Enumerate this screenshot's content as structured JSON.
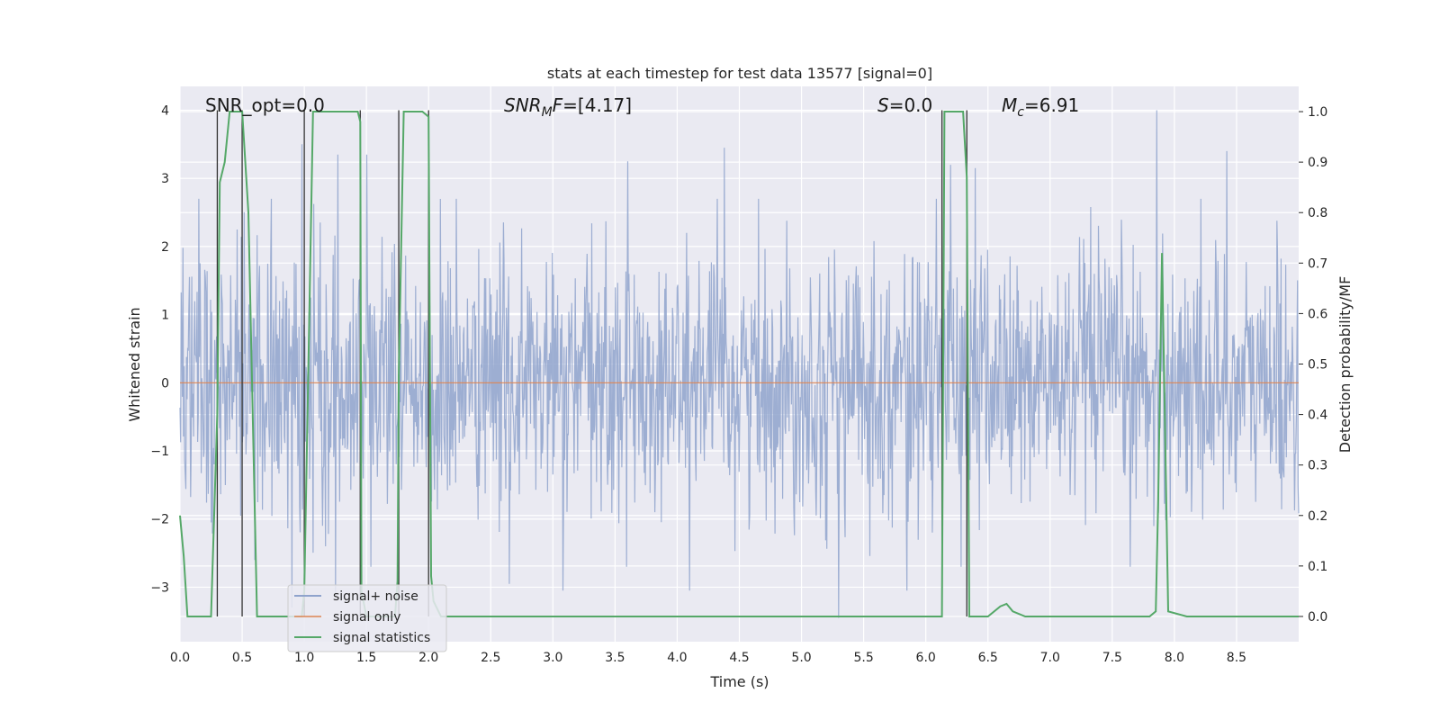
{
  "chart_data": {
    "type": "line",
    "title": "stats at each timestep for test data 13577 [signal=0]",
    "xlabel": "Time (s)",
    "ylabel": "Whitened strain",
    "y2label": "Detection probability/MF",
    "xlim": [
      0,
      9.0
    ],
    "ylim": [
      -3.8,
      4.35
    ],
    "y2lim": [
      -0.05,
      1.05
    ],
    "xticks": [
      0.0,
      0.5,
      1.0,
      1.5,
      2.0,
      2.5,
      3.0,
      3.5,
      4.0,
      4.5,
      5.0,
      5.5,
      6.0,
      6.5,
      7.0,
      7.5,
      8.0,
      8.5
    ],
    "xtick_labels": [
      "0.0",
      "0.5",
      "1.0",
      "1.5",
      "2.0",
      "2.5",
      "3.0",
      "3.5",
      "4.0",
      "4.5",
      "5.0",
      "5.5",
      "6.0",
      "6.5",
      "7.0",
      "7.5",
      "8.0",
      "8.5"
    ],
    "yticks": [
      -3,
      -2,
      -1,
      0,
      1,
      2,
      3,
      4
    ],
    "ytick_labels": [
      "−3",
      "−2",
      "−1",
      "0",
      "1",
      "2",
      "3",
      "4"
    ],
    "y2ticks": [
      0.0,
      0.1,
      0.2,
      0.3,
      0.4,
      0.5,
      0.6,
      0.7,
      0.8,
      0.9,
      1.0
    ],
    "y2tick_labels": [
      "0.0",
      "0.1",
      "0.2",
      "0.3",
      "0.4",
      "0.5",
      "0.6",
      "0.7",
      "0.8",
      "0.9",
      "1.0"
    ],
    "grid": true,
    "legend": {
      "placement": "lower-left",
      "entries": [
        {
          "label": "signal+ noise",
          "color": "#8fa3cc"
        },
        {
          "label": "signal only",
          "color": "#dd8452"
        },
        {
          "label": "signal statistics",
          "color": "#55a868"
        }
      ]
    },
    "annotations": {
      "snr_opt": "SNR_opt=0.0",
      "snr_mf_main": "SNR",
      "snr_mf_sub": "M",
      "snr_mf_f": "F",
      "snr_mf_val": "=[4.17]",
      "s_main": "S",
      "s_val": "=0.0",
      "mc_main": "M",
      "mc_sub": "c",
      "mc_val": "=6.91"
    },
    "series": [
      {
        "name": "signal+ noise",
        "color": "#8fa3cc",
        "description": "whitened noise, sigma ~1",
        "extremes": [
          [
            0.98,
            3.5
          ],
          [
            1.27,
            3.35
          ],
          [
            1.5,
            3.35
          ],
          [
            3.6,
            3.25
          ],
          [
            4.38,
            3.45
          ],
          [
            6.2,
            3.2
          ],
          [
            6.4,
            3.15
          ],
          [
            7.86,
            4.0
          ],
          [
            8.42,
            3.4
          ],
          [
            0.25,
            -2.05
          ],
          [
            0.6,
            -2.6
          ],
          [
            0.9,
            -3.3
          ],
          [
            1.25,
            -3.1
          ],
          [
            2.65,
            -2.95
          ],
          [
            3.08,
            -3.05
          ],
          [
            4.1,
            -3.05
          ],
          [
            5.3,
            -3.45
          ],
          [
            5.85,
            -3.05
          ]
        ]
      },
      {
        "name": "signal only",
        "color": "#dd8452",
        "x": [
          0,
          9.0
        ],
        "y": [
          0,
          0
        ]
      },
      {
        "name": "signal statistics",
        "color": "#55a868",
        "axis": "right",
        "x": [
          0.0,
          0.03,
          0.06,
          0.1,
          0.25,
          0.3,
          0.32,
          0.36,
          0.4,
          0.44,
          0.5,
          0.55,
          0.62,
          0.8,
          0.98,
          1.0,
          1.07,
          1.09,
          1.14,
          1.4,
          1.43,
          1.45,
          1.46,
          1.5,
          1.73,
          1.75,
          1.76,
          1.8,
          1.85,
          1.95,
          2.0,
          2.02,
          2.04,
          2.1,
          6.13,
          6.15,
          6.2,
          6.3,
          6.33,
          6.35,
          6.37,
          6.5,
          6.6,
          6.65,
          6.7,
          6.8,
          7.8,
          7.85,
          7.87,
          7.9,
          7.95,
          8.1,
          9.0
        ],
        "y": [
          0.2,
          0.12,
          0.0,
          0.0,
          0.0,
          0.4,
          0.86,
          0.9,
          1.0,
          1.0,
          1.0,
          0.8,
          0.0,
          0.0,
          0.0,
          0.05,
          1.0,
          1.0,
          1.0,
          1.0,
          1.0,
          0.98,
          0.05,
          0.0,
          0.0,
          0.07,
          0.48,
          1.0,
          1.0,
          1.0,
          0.99,
          0.08,
          0.03,
          0.0,
          0.0,
          1.0,
          1.0,
          1.0,
          0.87,
          0.0,
          0.0,
          0.0,
          0.02,
          0.025,
          0.01,
          0.0,
          0.0,
          0.01,
          0.23,
          0.72,
          0.01,
          0.0,
          0.0
        ]
      }
    ],
    "vertical_lines": [
      0.3,
      0.5,
      1.0,
      1.45,
      1.76,
      2.0,
      6.13,
      6.33
    ]
  }
}
